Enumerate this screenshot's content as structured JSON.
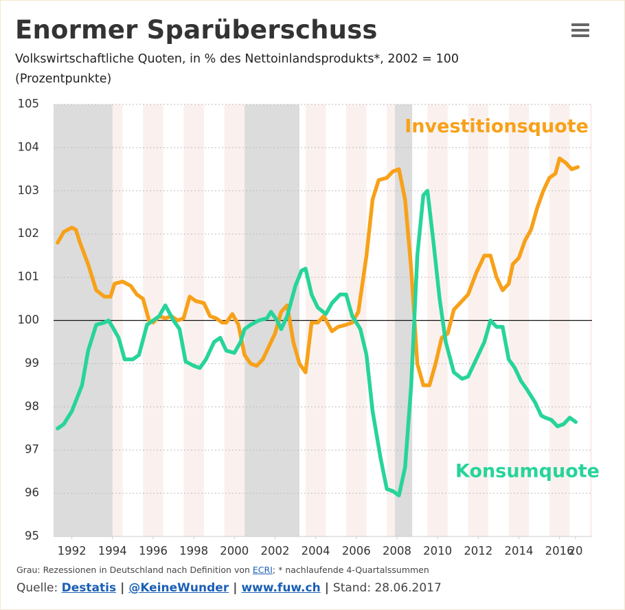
{
  "chart_data": {
    "type": "line",
    "title": "Enormer Sparüberschuss",
    "subtitle": "Volkswirtschaftliche Quoten, in % des Nettoinlandsprodukts*, 2002 = 100",
    "subtitle2": "(Prozentpunkte)",
    "xlim": [
      1991.1,
      2017.6
    ],
    "ylim": [
      95,
      105
    ],
    "xticks": [
      1992,
      1994,
      1996,
      1998,
      2000,
      2002,
      2004,
      2006,
      2008,
      2010,
      2012,
      2014,
      2016,
      {
        "value": 2018,
        "label": "20"
      }
    ],
    "yticks": [
      95,
      96,
      97,
      98,
      99,
      100,
      101,
      102,
      103,
      104,
      105
    ],
    "reference_line": 100,
    "grid": true,
    "recessions": [
      [
        1991.1,
        1994.0
      ],
      [
        2000.5,
        2003.2
      ],
      [
        2007.9,
        2008.75
      ]
    ],
    "recession_color": "#dcdcdc",
    "stripe_color": "#faf1ee",
    "series": [
      {
        "name": "Investitionsquote",
        "color": "#f7a11a",
        "x": [
          1991.3,
          1991.6,
          1992.0,
          1992.2,
          1992.4,
          1992.8,
          1993.2,
          1993.6,
          1993.9,
          1994.1,
          1994.5,
          1994.9,
          1995.2,
          1995.5,
          1995.8,
          1996.0,
          1996.3,
          1996.6,
          1996.9,
          1997.2,
          1997.5,
          1997.8,
          1998.1,
          1998.5,
          1998.8,
          1999.1,
          1999.4,
          1999.6,
          1999.9,
          2000.2,
          2000.5,
          2000.8,
          2001.1,
          2001.4,
          2001.7,
          2002.0,
          2002.3,
          2002.6,
          2002.9,
          2003.2,
          2003.5,
          2003.8,
          2004.1,
          2004.4,
          2004.8,
          2005.1,
          2005.5,
          2005.8,
          2006.1,
          2006.5,
          2006.8,
          2007.1,
          2007.5,
          2007.8,
          2008.1,
          2008.4,
          2008.7,
          2009.0,
          2009.3,
          2009.6,
          2009.9,
          2010.2,
          2010.5,
          2010.8,
          2011.2,
          2011.5,
          2011.9,
          2012.3,
          2012.6,
          2012.9,
          2013.2,
          2013.5,
          2013.7,
          2014.0,
          2014.3,
          2014.6,
          2014.9,
          2015.2,
          2015.5,
          2015.8,
          2016.0,
          2016.3,
          2016.6,
          2016.9
        ],
        "values": [
          101.8,
          102.05,
          102.15,
          102.1,
          101.8,
          101.3,
          100.7,
          100.55,
          100.55,
          100.85,
          100.9,
          100.8,
          100.6,
          100.5,
          100.0,
          99.95,
          100.1,
          100.05,
          100.1,
          100.0,
          100.05,
          100.55,
          100.45,
          100.4,
          100.1,
          100.05,
          99.95,
          99.95,
          100.15,
          99.9,
          99.2,
          99.0,
          98.95,
          99.1,
          99.4,
          99.7,
          100.2,
          100.35,
          99.5,
          99.0,
          98.8,
          99.95,
          99.95,
          100.1,
          99.75,
          99.85,
          99.9,
          99.95,
          100.2,
          101.5,
          102.8,
          103.25,
          103.3,
          103.45,
          103.5,
          102.8,
          101.2,
          99.0,
          98.5,
          98.5,
          99.0,
          99.6,
          99.7,
          100.25,
          100.45,
          100.6,
          101.1,
          101.5,
          101.5,
          101.0,
          100.7,
          100.85,
          101.3,
          101.45,
          101.85,
          102.1,
          102.6,
          103.0,
          103.3,
          103.4,
          103.75,
          103.65,
          103.5,
          103.55
        ]
      },
      {
        "name": "Konsumquote",
        "color": "#27d49a",
        "x": [
          1991.3,
          1991.6,
          1992.0,
          1992.5,
          1992.8,
          1993.2,
          1993.6,
          1993.8,
          1994.0,
          1994.3,
          1994.6,
          1995.0,
          1995.3,
          1995.7,
          1996.0,
          1996.3,
          1996.6,
          1997.0,
          1997.3,
          1997.6,
          1998.0,
          1998.3,
          1998.6,
          1999.0,
          1999.3,
          1999.6,
          2000.0,
          2000.3,
          2000.5,
          2000.8,
          2001.2,
          2001.6,
          2001.8,
          2002.1,
          2002.3,
          2002.6,
          2003.0,
          2003.3,
          2003.5,
          2003.8,
          2004.1,
          2004.5,
          2004.8,
          2005.2,
          2005.5,
          2005.8,
          2006.2,
          2006.5,
          2006.8,
          2007.2,
          2007.5,
          2007.8,
          2008.1,
          2008.4,
          2008.7,
          2009.0,
          2009.3,
          2009.5,
          2009.8,
          2010.1,
          2010.4,
          2010.8,
          2011.2,
          2011.5,
          2011.9,
          2012.3,
          2012.6,
          2012.9,
          2013.2,
          2013.5,
          2013.8,
          2014.1,
          2014.4,
          2014.8,
          2015.1,
          2015.3,
          2015.6,
          2015.9,
          2016.2,
          2016.5,
          2016.8
        ],
        "values": [
          97.5,
          97.6,
          97.9,
          98.5,
          99.3,
          99.9,
          99.95,
          100.0,
          99.85,
          99.6,
          99.1,
          99.1,
          99.2,
          99.9,
          100.0,
          100.1,
          100.35,
          100.0,
          99.8,
          99.05,
          98.95,
          98.9,
          99.1,
          99.5,
          99.6,
          99.3,
          99.25,
          99.5,
          99.8,
          99.9,
          100.0,
          100.05,
          100.2,
          100.0,
          99.8,
          100.1,
          100.8,
          101.15,
          101.2,
          100.6,
          100.3,
          100.15,
          100.4,
          100.6,
          100.6,
          100.1,
          99.8,
          99.2,
          97.9,
          96.8,
          96.1,
          96.05,
          95.95,
          96.6,
          98.5,
          101.5,
          102.9,
          103.0,
          101.8,
          100.5,
          99.5,
          98.8,
          98.65,
          98.7,
          99.1,
          99.5,
          100.0,
          99.85,
          99.85,
          99.1,
          98.9,
          98.6,
          98.4,
          98.1,
          97.8,
          97.75,
          97.7,
          97.55,
          97.6,
          97.75,
          97.65
        ]
      }
    ]
  },
  "footer": {
    "note_before": "Grau: Rezessionen in Deutschland nach Definition von",
    "note_link": "ECRI",
    "note_after": "; * nachlaufende 4-Quartalssummen",
    "source_label": "Quelle:",
    "separator": "|",
    "source_links": [
      "Destatis",
      "@KeineWunder",
      "www.fuw.ch"
    ],
    "date": "Stand: 28.06.2017"
  }
}
